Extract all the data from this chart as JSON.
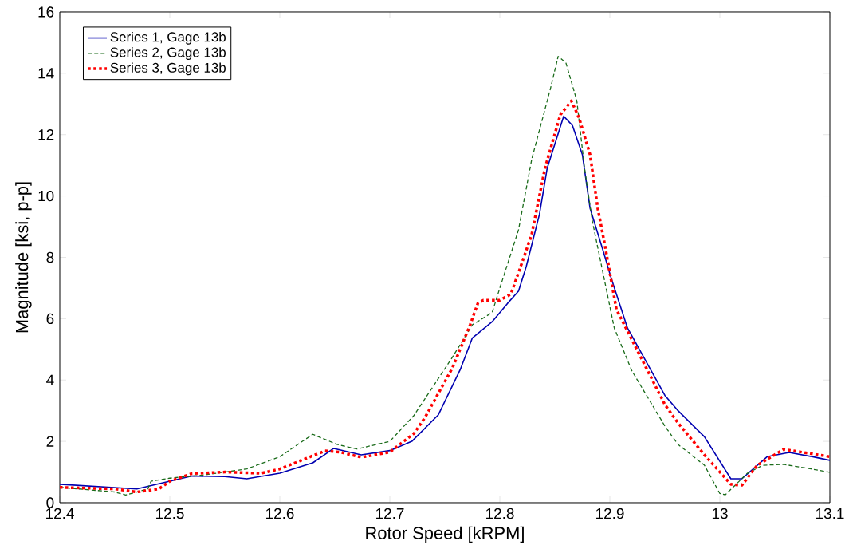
{
  "chart_data": {
    "type": "line",
    "xlabel": "Rotor Speed [kRPM]",
    "ylabel": "Magnitude [ksi, p-p]",
    "xlim": [
      12.4,
      13.1
    ],
    "ylim": [
      0,
      16
    ],
    "xticks": [
      12.4,
      12.5,
      12.6,
      12.7,
      12.8,
      12.9,
      13,
      13.1
    ],
    "yticks": [
      0,
      2,
      4,
      6,
      8,
      10,
      12,
      14,
      16
    ],
    "grid": false,
    "legend": "top left",
    "marker": "none",
    "series": [
      {
        "name": "Series 1, Gage 13b",
        "color": "#0000b0",
        "line_style": "solid",
        "x": [
          12.4,
          12.47,
          12.5,
          12.52,
          12.55,
          12.57,
          12.6,
          12.63,
          12.649,
          12.674,
          12.7,
          12.72,
          12.744,
          12.764,
          12.775,
          12.793,
          12.807,
          12.817,
          12.824,
          12.836,
          12.843,
          12.858,
          12.866,
          12.875,
          12.882,
          12.894,
          12.901,
          12.916,
          12.95,
          12.962,
          12.986,
          13.01,
          13.02,
          13.043,
          13.063,
          13.087,
          13.1
        ],
        "values": [
          0.6,
          0.45,
          0.7,
          0.87,
          0.85,
          0.78,
          0.96,
          1.3,
          1.77,
          1.56,
          1.7,
          2.0,
          2.86,
          4.34,
          5.37,
          5.9,
          6.5,
          6.9,
          7.7,
          9.4,
          10.9,
          12.6,
          12.3,
          11.35,
          9.6,
          8.2,
          7.35,
          5.7,
          3.5,
          3.0,
          2.15,
          0.78,
          0.78,
          1.5,
          1.64,
          1.48,
          1.38
        ]
      },
      {
        "name": "Series 2, Gage 13b",
        "color": "#1a6b1a",
        "line_style": "dashed",
        "x": [
          12.4,
          12.45,
          12.46,
          12.48,
          12.483,
          12.5,
          12.53,
          12.57,
          12.6,
          12.63,
          12.652,
          12.67,
          12.7,
          12.722,
          12.757,
          12.775,
          12.793,
          12.8,
          12.817,
          12.829,
          12.846,
          12.853,
          12.86,
          12.87,
          12.877,
          12.884,
          12.894,
          12.904,
          12.92,
          12.95,
          12.962,
          12.986,
          13.0,
          13.005,
          13.025,
          13.039,
          13.058,
          13.083,
          13.1
        ],
        "values": [
          0.5,
          0.35,
          0.25,
          0.45,
          0.7,
          0.8,
          0.9,
          1.1,
          1.5,
          2.23,
          1.9,
          1.75,
          2.0,
          2.85,
          4.75,
          5.8,
          6.2,
          7.0,
          8.9,
          11.2,
          13.5,
          14.55,
          14.35,
          13.1,
          10.9,
          9.2,
          7.45,
          5.7,
          4.3,
          2.5,
          1.9,
          1.22,
          0.3,
          0.26,
          0.96,
          1.22,
          1.25,
          1.1,
          0.99
        ]
      },
      {
        "name": "Series 3, Gage 13b",
        "color": "#ff0000",
        "line_style": "dotted",
        "x": [
          12.4,
          12.45,
          12.47,
          12.49,
          12.5,
          12.52,
          12.55,
          12.583,
          12.6,
          12.641,
          12.655,
          12.674,
          12.7,
          12.722,
          12.732,
          12.757,
          12.773,
          12.78,
          12.785,
          12.8,
          12.81,
          12.817,
          12.829,
          12.841,
          12.855,
          12.865,
          12.872,
          12.882,
          12.889,
          12.896,
          12.906,
          12.916,
          12.95,
          12.962,
          12.986,
          13.01,
          13.02,
          13.034,
          13.058,
          13.083,
          13.1
        ],
        "values": [
          0.5,
          0.45,
          0.35,
          0.45,
          0.7,
          0.95,
          1.0,
          0.96,
          1.1,
          1.69,
          1.65,
          1.48,
          1.65,
          2.26,
          2.78,
          4.4,
          5.8,
          6.5,
          6.6,
          6.6,
          6.8,
          7.5,
          8.75,
          10.9,
          12.65,
          13.1,
          12.55,
          11.35,
          9.6,
          8.3,
          6.3,
          5.6,
          3.2,
          2.6,
          1.56,
          0.6,
          0.57,
          1.22,
          1.74,
          1.6,
          1.5
        ]
      }
    ]
  }
}
